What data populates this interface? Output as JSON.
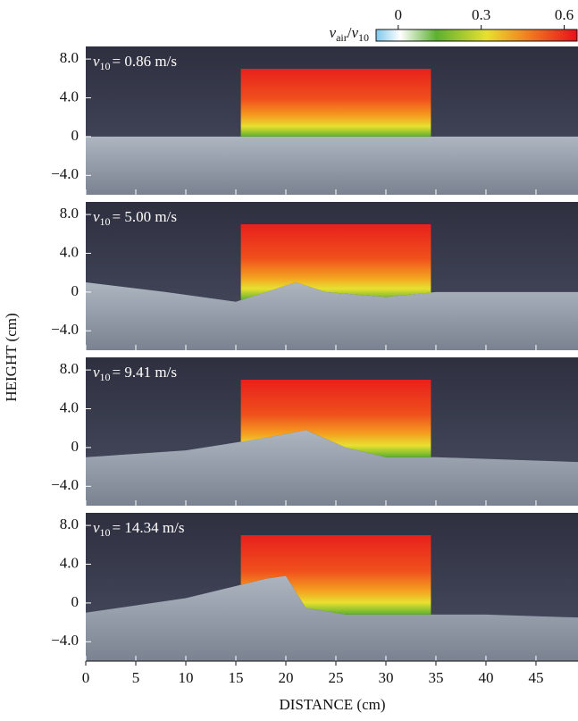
{
  "chart_data": {
    "type": "image-panels",
    "xlabel": "DISTANCE (cm)",
    "ylabel": "HEIGHT (cm)",
    "xlim": [
      0,
      49.2
    ],
    "xticks": [
      0,
      5,
      10,
      15,
      20,
      25,
      30,
      35,
      40,
      45
    ],
    "ylim": [
      -6,
      9.3
    ],
    "yticks": [
      {
        "value": 8,
        "label": "8.0"
      },
      {
        "value": 4,
        "label": "4.0"
      },
      0,
      {
        "value": -4,
        "label": "−4.0"
      }
    ],
    "colorbar": {
      "label": {
        "numerator": "v",
        "numerator_sub": "air",
        "separator": "/",
        "denominator": "v",
        "denominator_sub": "10"
      },
      "clim": [
        -0.08,
        0.65
      ],
      "ticks": [
        0,
        0.3,
        0.6
      ]
    },
    "panels": [
      {
        "symbol": "v",
        "sub": "10",
        "text": "= 0.86 m/s"
      },
      {
        "symbol": "v",
        "sub": "10",
        "text": "= 5.00 m/s"
      },
      {
        "symbol": "v",
        "sub": "10",
        "text": "= 9.41 m/s"
      },
      {
        "symbol": "v",
        "sub": "10",
        "text": "= 14.34 m/s"
      }
    ]
  }
}
